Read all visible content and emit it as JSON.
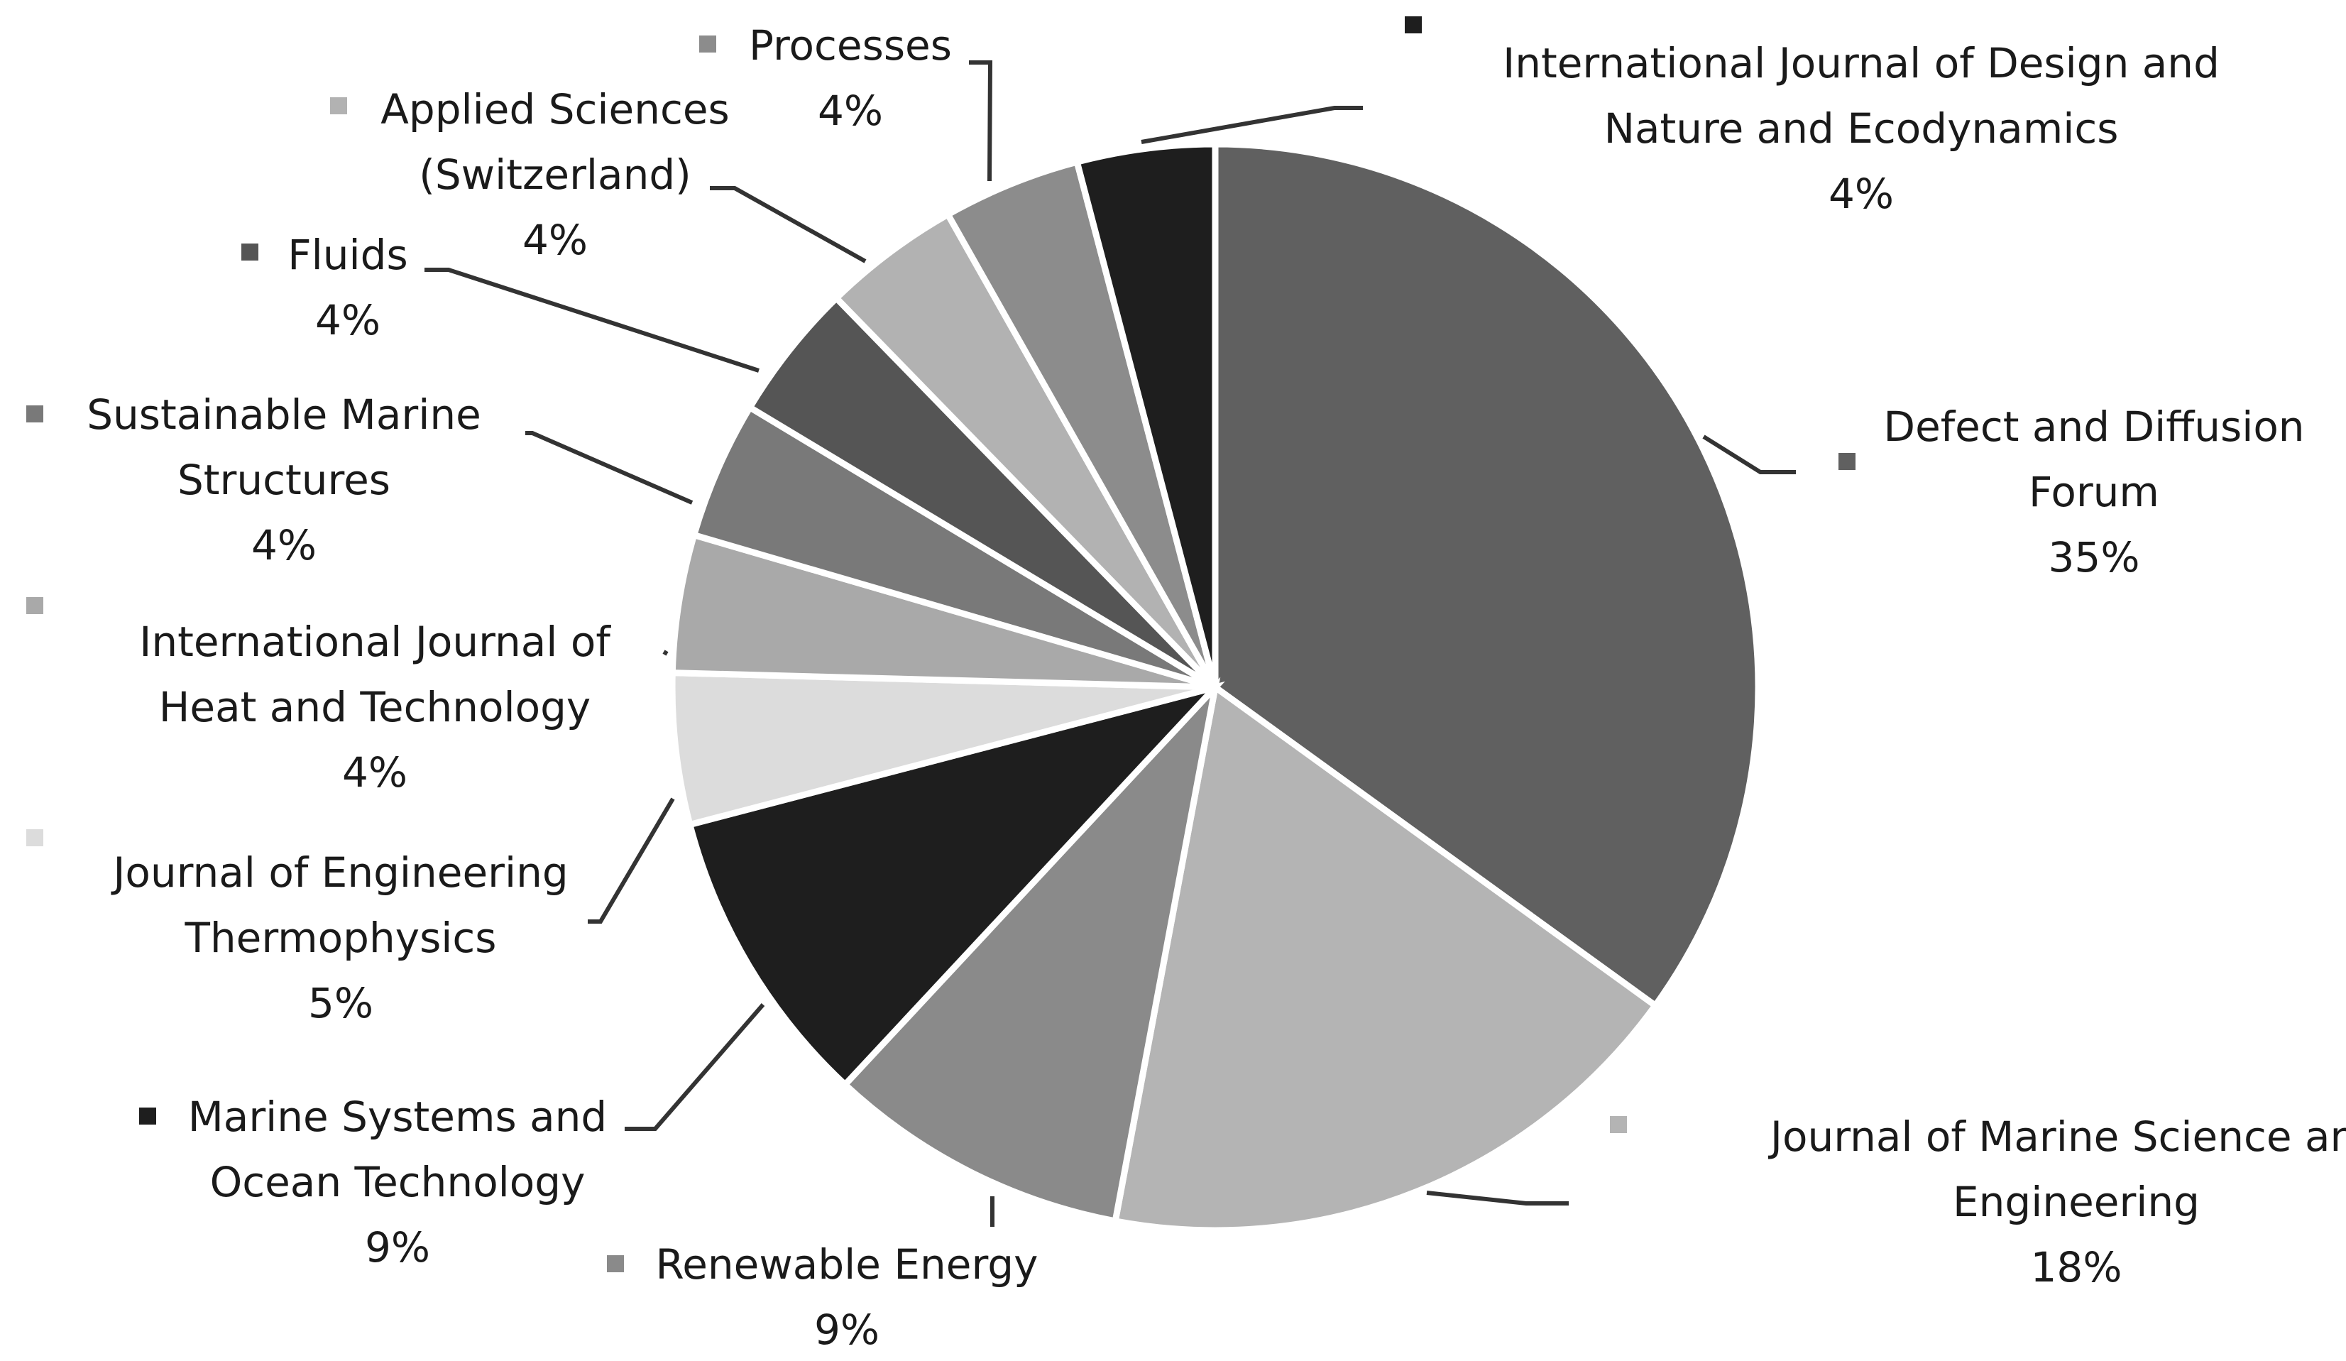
{
  "chart_data": {
    "type": "pie",
    "title": "",
    "slices": [
      {
        "name": "Defect and Diffusion Forum",
        "lines": [
          "Defect and Diffusion",
          "Forum"
        ],
        "percent_label": "35%",
        "value": 35,
        "color": "#606060"
      },
      {
        "name": "Journal of Marine Science and Engineering",
        "lines": [
          "Journal of Marine Science and",
          "Engineering"
        ],
        "percent_label": "18%",
        "value": 18,
        "color": "#b4b4b4"
      },
      {
        "name": "Renewable Energy",
        "lines": [
          "Renewable Energy"
        ],
        "percent_label": "9%",
        "value": 9,
        "color": "#8a8a8a"
      },
      {
        "name": "Marine Systems and Ocean Technology",
        "lines": [
          "Marine Systems and",
          "Ocean Technology"
        ],
        "percent_label": "9%",
        "value": 9,
        "color": "#1e1e1e"
      },
      {
        "name": "Journal of Engineering Thermophysics",
        "lines": [
          "Journal of Engineering",
          "Thermophysics"
        ],
        "percent_label": "5%",
        "value": 4.5,
        "color": "#dcdcdc"
      },
      {
        "name": "International Journal of Heat and Technology",
        "lines": [
          "International Journal of",
          "Heat and Technology"
        ],
        "percent_label": "4%",
        "value": 4.1,
        "color": "#a9a9a9"
      },
      {
        "name": "Sustainable Marine Structures",
        "lines": [
          "Sustainable Marine",
          "Structures"
        ],
        "percent_label": "4%",
        "value": 4.1,
        "color": "#797979"
      },
      {
        "name": "Fluids",
        "lines": [
          "Fluids"
        ],
        "percent_label": "4%",
        "value": 4.1,
        "color": "#555555"
      },
      {
        "name": "Applied Sciences (Switzerland)",
        "lines": [
          "Applied Sciences",
          "(Switzerland)"
        ],
        "percent_label": "4%",
        "value": 4.1,
        "color": "#b2b2b2"
      },
      {
        "name": "Processes",
        "lines": [
          "Processes"
        ],
        "percent_label": "4%",
        "value": 4.1,
        "color": "#8c8c8c"
      },
      {
        "name": "International Journal of Design and Nature and Ecodynamics",
        "lines": [
          "International Journal of Design and",
          "Nature and Ecodynamics"
        ],
        "percent_label": "4%",
        "value": 4.1,
        "color": "#1e1e1e"
      }
    ]
  }
}
